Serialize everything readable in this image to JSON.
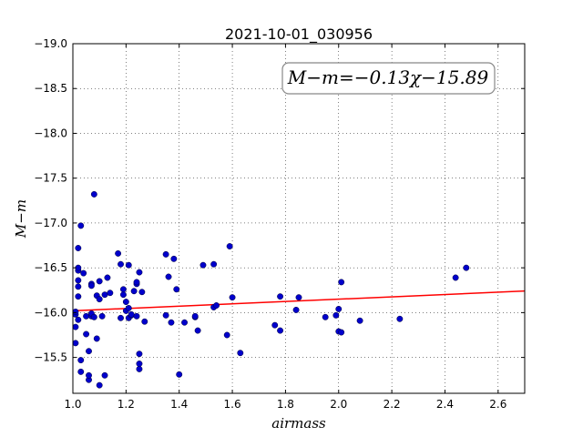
{
  "chart_data": {
    "type": "scatter",
    "title": "2021-10-01_030956",
    "xlabel": "airmass",
    "ylabel": "M−m",
    "annotation": "M−m=−0.13χ−15.89",
    "xlim": [
      1.0,
      2.7
    ],
    "ylim": [
      -19.0,
      -15.1
    ],
    "y_inverted": true,
    "grid": true,
    "x_ticks": [
      "1.0",
      "1.2",
      "1.4",
      "1.6",
      "1.8",
      "2.0",
      "2.2",
      "2.4",
      "2.6"
    ],
    "y_ticks": [
      "−15.5",
      "−16.0",
      "−16.5",
      "−17.0",
      "−17.5",
      "−18.0",
      "−18.5",
      "−19.0"
    ],
    "x_tick_values": [
      1.0,
      1.2,
      1.4,
      1.6,
      1.8,
      2.0,
      2.2,
      2.4,
      2.6
    ],
    "y_tick_values": [
      -15.5,
      -16.0,
      -16.5,
      -17.0,
      -17.5,
      -18.0,
      -18.5,
      -19.0
    ],
    "fit": {
      "slope": -0.13,
      "intercept": -15.89,
      "color": "#ff0000"
    },
    "point_color": "#0000cc",
    "points": [
      [
        1.01,
        -15.84
      ],
      [
        1.01,
        -15.98
      ],
      [
        1.01,
        -16.01
      ],
      [
        1.01,
        -15.66
      ],
      [
        1.02,
        -16.18
      ],
      [
        1.02,
        -16.29
      ],
      [
        1.02,
        -16.36
      ],
      [
        1.02,
        -16.47
      ],
      [
        1.02,
        -16.5
      ],
      [
        1.02,
        -16.72
      ],
      [
        1.02,
        -15.92
      ],
      [
        1.03,
        -16.97
      ],
      [
        1.03,
        -15.34
      ],
      [
        1.03,
        -15.47
      ],
      [
        1.04,
        -16.44
      ],
      [
        1.05,
        -15.76
      ],
      [
        1.05,
        -15.96
      ],
      [
        1.06,
        -15.25
      ],
      [
        1.06,
        -15.3
      ],
      [
        1.06,
        -15.57
      ],
      [
        1.07,
        -15.96
      ],
      [
        1.07,
        -15.99
      ],
      [
        1.07,
        -16.32
      ],
      [
        1.07,
        -16.3
      ],
      [
        1.08,
        -17.32
      ],
      [
        1.08,
        -15.95
      ],
      [
        1.09,
        -15.71
      ],
      [
        1.09,
        -16.19
      ],
      [
        1.1,
        -16.15
      ],
      [
        1.1,
        -16.35
      ],
      [
        1.1,
        -15.19
      ],
      [
        1.11,
        -15.96
      ],
      [
        1.12,
        -16.2
      ],
      [
        1.12,
        -15.3
      ],
      [
        1.13,
        -16.39
      ],
      [
        1.14,
        -16.22
      ],
      [
        1.17,
        -16.66
      ],
      [
        1.18,
        -15.94
      ],
      [
        1.18,
        -16.54
      ],
      [
        1.19,
        -16.2
      ],
      [
        1.19,
        -16.26
      ],
      [
        1.2,
        -16.12
      ],
      [
        1.2,
        -16.02
      ],
      [
        1.21,
        -16.05
      ],
      [
        1.21,
        -15.94
      ],
      [
        1.21,
        -16.53
      ],
      [
        1.22,
        -15.97
      ],
      [
        1.22,
        -15.98
      ],
      [
        1.23,
        -16.24
      ],
      [
        1.24,
        -15.96
      ],
      [
        1.24,
        -16.32
      ],
      [
        1.24,
        -16.34
      ],
      [
        1.25,
        -15.37
      ],
      [
        1.25,
        -15.43
      ],
      [
        1.25,
        -15.54
      ],
      [
        1.25,
        -16.45
      ],
      [
        1.26,
        -16.23
      ],
      [
        1.27,
        -15.9
      ],
      [
        1.35,
        -15.97
      ],
      [
        1.35,
        -16.65
      ],
      [
        1.36,
        -16.4
      ],
      [
        1.37,
        -15.89
      ],
      [
        1.38,
        -16.6
      ],
      [
        1.39,
        -16.26
      ],
      [
        1.4,
        -15.31
      ],
      [
        1.42,
        -15.89
      ],
      [
        1.46,
        -15.95
      ],
      [
        1.46,
        -15.96
      ],
      [
        1.47,
        -15.8
      ],
      [
        1.49,
        -16.53
      ],
      [
        1.53,
        -16.06
      ],
      [
        1.53,
        -16.54
      ],
      [
        1.54,
        -16.08
      ],
      [
        1.58,
        -15.75
      ],
      [
        1.59,
        -16.74
      ],
      [
        1.6,
        -16.17
      ],
      [
        1.63,
        -15.55
      ],
      [
        1.76,
        -15.86
      ],
      [
        1.78,
        -15.8
      ],
      [
        1.78,
        -16.18
      ],
      [
        1.84,
        -16.03
      ],
      [
        1.85,
        -16.17
      ],
      [
        1.95,
        -15.95
      ],
      [
        1.99,
        -15.97
      ],
      [
        2.0,
        -15.79
      ],
      [
        2.0,
        -16.04
      ],
      [
        2.01,
        -15.78
      ],
      [
        2.01,
        -16.34
      ],
      [
        2.08,
        -15.91
      ],
      [
        2.23,
        -15.93
      ],
      [
        2.44,
        -16.39
      ],
      [
        2.48,
        -16.5
      ]
    ]
  }
}
